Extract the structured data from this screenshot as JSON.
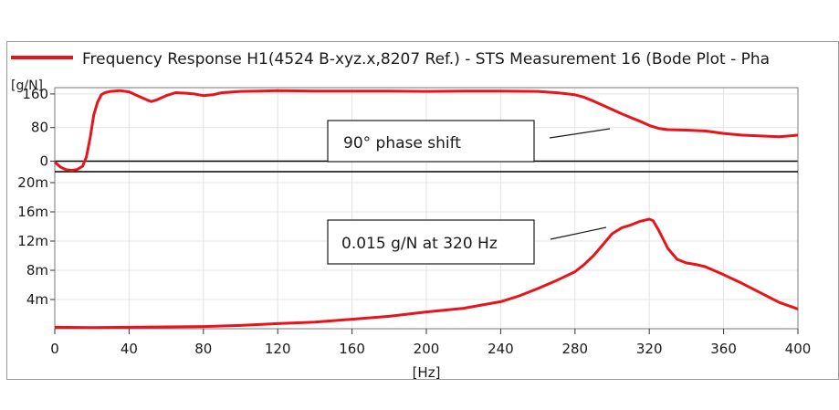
{
  "chart_data": {
    "type": "line",
    "legend_position": "top",
    "legend_label": "Frequency Response H1(4524 B-xyz.x,8207 Ref.) - STS Measurement 16 (Bode Plot - Pha",
    "xlabel": "[Hz]",
    "xlim": [
      0,
      400
    ],
    "x_ticks": [
      "0",
      "40",
      "80",
      "120",
      "160",
      "200",
      "240",
      "280",
      "320",
      "360",
      "400"
    ],
    "line_color": "#e8141a",
    "grid": true,
    "panels": [
      {
        "id": "phase",
        "ylabel": "[g/N]",
        "ylim": [
          -25,
          175
        ],
        "y_ticks": [
          {
            "v": 160,
            "label": "160"
          },
          {
            "v": 80,
            "label": "80"
          },
          {
            "v": 0,
            "label": "0"
          }
        ],
        "x": [
          0,
          3,
          6,
          9,
          12,
          15,
          17,
          19,
          21,
          23,
          25,
          27,
          30,
          35,
          40,
          45,
          50,
          52,
          55,
          60,
          65,
          70,
          75,
          80,
          85,
          90,
          100,
          110,
          120,
          140,
          160,
          180,
          200,
          220,
          240,
          260,
          270,
          280,
          285,
          290,
          295,
          300,
          305,
          310,
          315,
          320,
          325,
          330,
          340,
          350,
          360,
          370,
          380,
          390,
          395,
          400
        ],
        "values": [
          -2,
          -14,
          -20,
          -22,
          -20,
          -12,
          10,
          55,
          110,
          140,
          158,
          163,
          166,
          168,
          165,
          155,
          145,
          142,
          146,
          156,
          163,
          162,
          160,
          156,
          158,
          163,
          166,
          167,
          168,
          167,
          167,
          167,
          166,
          167,
          167,
          166,
          163,
          158,
          152,
          143,
          133,
          123,
          113,
          104,
          95,
          85,
          78,
          75,
          74,
          72,
          66,
          62,
          60,
          58,
          60,
          62
        ]
      },
      {
        "id": "magnitude",
        "ylim": [
          0,
          0.0215
        ],
        "y_ticks": [
          {
            "v": 0.02,
            "label": "20m"
          },
          {
            "v": 0.016,
            "label": "16m"
          },
          {
            "v": 0.012,
            "label": "12m"
          },
          {
            "v": 0.008,
            "label": "8m"
          },
          {
            "v": 0.004,
            "label": "4m"
          }
        ],
        "x": [
          0,
          20,
          40,
          60,
          80,
          100,
          120,
          140,
          160,
          180,
          200,
          220,
          240,
          250,
          260,
          270,
          280,
          285,
          290,
          295,
          300,
          305,
          310,
          315,
          320,
          322,
          325,
          330,
          335,
          340,
          345,
          350,
          360,
          370,
          380,
          390,
          400
        ],
        "values": [
          0.0002,
          0.00015,
          0.0002,
          0.00025,
          0.0003,
          0.00045,
          0.0007,
          0.0009,
          0.0013,
          0.0017,
          0.0023,
          0.0028,
          0.0037,
          0.0045,
          0.0055,
          0.0066,
          0.0078,
          0.0088,
          0.01,
          0.0115,
          0.013,
          0.0138,
          0.0142,
          0.0147,
          0.015,
          0.0148,
          0.0135,
          0.011,
          0.0095,
          0.009,
          0.0088,
          0.0085,
          0.0074,
          0.0062,
          0.0049,
          0.0036,
          0.0027
        ]
      }
    ],
    "annotations": [
      {
        "panel": "phase",
        "text": "90° phase shift"
      },
      {
        "panel": "magnitude",
        "text": "0.015 g/N at 320 Hz"
      }
    ]
  }
}
